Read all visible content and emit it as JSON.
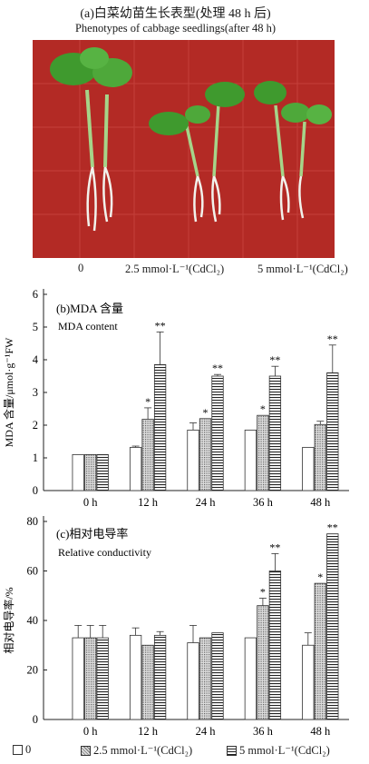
{
  "panel_a": {
    "title_cn": "(a)白菜幼苗生长表型(处理 48 h 后)",
    "title_en": "Phenotypes of cabbage seedlings(after 48 h)",
    "treatments": [
      "0",
      "2.5 mmol·L⁻¹(CdCl₂)",
      "5 mmol·L⁻¹(CdCl₂)"
    ],
    "photo_colors": {
      "background": "#b32a25",
      "grid": "#d2534c",
      "leaf": "#3f9a2e",
      "stem": "#a6d489",
      "root": "#f2f2ec"
    }
  },
  "legend": [
    "0",
    "2.5 mmol·L⁻¹(CdCl₂)",
    "5 mmol·L⁻¹(CdCl₂)"
  ],
  "chart_data": [
    {
      "type": "bar",
      "panel_label_cn": "(b)MDA 含量",
      "panel_label_en": "MDA content",
      "ylabel": "MDA 含量/μmol·g⁻¹FW",
      "xlabel": "",
      "ylim": [
        0,
        6
      ],
      "yticks": [
        0,
        1,
        2,
        3,
        4,
        5,
        6
      ],
      "categories": [
        "0 h",
        "12 h",
        "24 h",
        "36 h",
        "48 h"
      ],
      "series": [
        {
          "name": "0",
          "values": [
            1.1,
            1.32,
            1.85,
            1.85,
            1.32
          ],
          "errors": [
            0,
            0.04,
            0.22,
            0,
            0
          ]
        },
        {
          "name": "2.5 mmol·L⁻¹(CdCl₂)",
          "values": [
            1.1,
            2.18,
            2.2,
            2.3,
            2.02
          ],
          "errors": [
            0,
            0.35,
            0,
            0,
            0.1
          ]
        },
        {
          "name": "5 mmol·L⁻¹(CdCl₂)",
          "values": [
            1.1,
            3.85,
            3.5,
            3.5,
            3.6
          ],
          "errors": [
            0,
            1.0,
            0.05,
            0.3,
            0.85
          ]
        }
      ],
      "significance": [
        [
          "",
          "",
          ""
        ],
        [
          "",
          "*",
          "**"
        ],
        [
          "",
          "*",
          "**"
        ],
        [
          "",
          "*",
          "**"
        ],
        [
          "",
          "",
          "**"
        ]
      ]
    },
    {
      "type": "bar",
      "panel_label_cn": "(c)相对电导率",
      "panel_label_en": "Relative conductivity",
      "ylabel": "相对电导率/%",
      "xlabel": "",
      "ylim": [
        0,
        80
      ],
      "yticks": [
        0,
        20,
        40,
        60,
        80
      ],
      "categories": [
        "0 h",
        "12 h",
        "24 h",
        "36 h",
        "48 h"
      ],
      "series": [
        {
          "name": "0",
          "values": [
            33,
            34,
            31,
            33,
            30
          ],
          "errors": [
            5,
            3,
            7,
            0,
            5
          ]
        },
        {
          "name": "2.5 mmol·L⁻¹(CdCl₂)",
          "values": [
            33,
            30,
            33,
            46,
            55
          ],
          "errors": [
            5,
            0,
            0,
            3,
            0
          ]
        },
        {
          "name": "5 mmol·L⁻¹(CdCl₂)",
          "values": [
            33,
            34,
            35,
            60,
            75
          ],
          "errors": [
            5,
            1.5,
            0,
            7,
            0
          ]
        }
      ],
      "significance": [
        [
          "",
          "",
          ""
        ],
        [
          "",
          "",
          ""
        ],
        [
          "",
          "",
          ""
        ],
        [
          "",
          "*",
          "**"
        ],
        [
          "",
          "*",
          "**"
        ]
      ]
    }
  ]
}
